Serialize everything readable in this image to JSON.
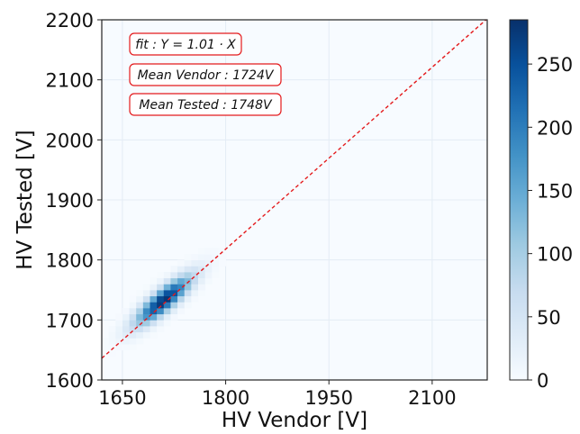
{
  "chart_data": {
    "type": "heatmap",
    "xlabel": "HV Vendor [V]",
    "ylabel": "HV Tested [V]",
    "xlim": [
      1620,
      2180
    ],
    "ylim": [
      1600,
      2200
    ],
    "xticks": [
      1650,
      1800,
      1950,
      2100
    ],
    "yticks": [
      1600,
      1700,
      1800,
      1900,
      2000,
      2100,
      2200
    ],
    "grid": true,
    "colorbar": {
      "range": [
        0,
        285
      ],
      "ticks": [
        0,
        50,
        100,
        150,
        200,
        250
      ],
      "colormap": "Blues"
    },
    "fit_line": {
      "slope": 1.01,
      "intercept": 0,
      "color": "#e41a1c",
      "style": "dashed"
    },
    "density_peak": {
      "x": 1710,
      "y": 1733,
      "count": 285
    },
    "annotations": [
      "fit : Y = 1.01 · X",
      "Mean Vendor : 1724V",
      "Mean Tested : 1748V"
    ]
  }
}
